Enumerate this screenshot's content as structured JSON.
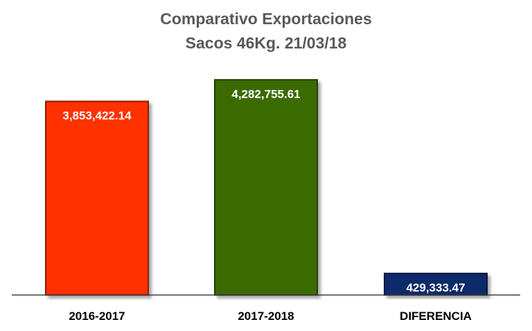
{
  "chart_data": {
    "type": "bar",
    "title": "Comparativo Exportaciones",
    "subtitle": "Sacos 46Kg. 21/03/18",
    "xlabel": "",
    "ylabel": "",
    "categories": [
      "2016-2017",
      "2017-2018",
      "DIFERENCIA"
    ],
    "values": [
      3853422.14,
      4282755.61,
      429333.47
    ],
    "value_labels": [
      "3,853,422.14",
      "4,282,755.61",
      "429,333.47"
    ],
    "colors": [
      "#ff3300",
      "#3a6b00",
      "#0f2a6b"
    ],
    "ylim": [
      0,
      4300000
    ],
    "grid": false,
    "legend": "none"
  }
}
